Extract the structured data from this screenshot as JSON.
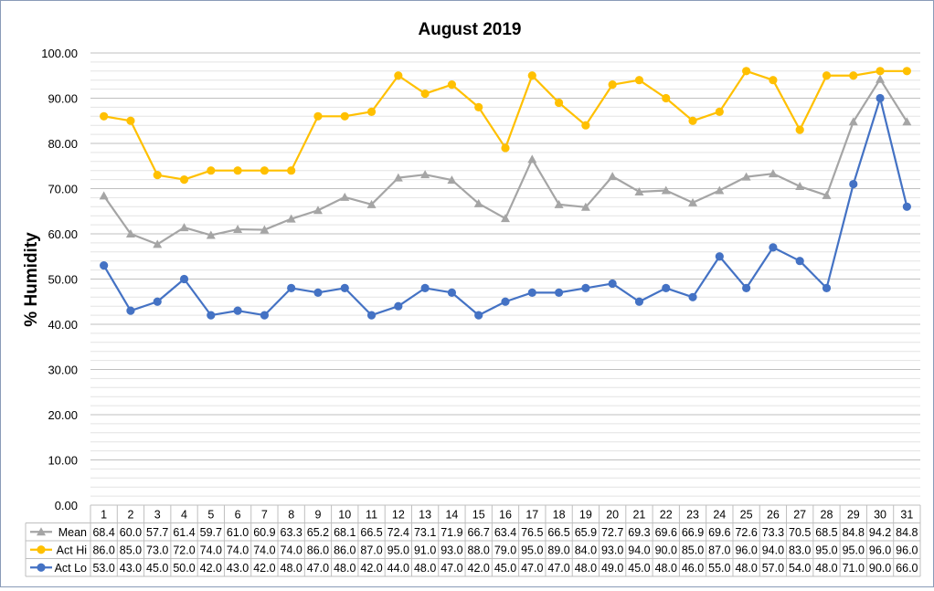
{
  "chart_data": {
    "type": "line",
    "title": "August 2019",
    "ylabel": "% Humidity",
    "xlabel": "",
    "ylim": [
      0,
      100
    ],
    "y_ticks": [
      "0.00",
      "10.00",
      "20.00",
      "30.00",
      "40.00",
      "50.00",
      "60.00",
      "70.00",
      "80.00",
      "90.00",
      "100.00"
    ],
    "y_minor_step": 2,
    "grid": true,
    "legend": "data-table-left",
    "categories": [
      "1",
      "2",
      "3",
      "4",
      "5",
      "6",
      "7",
      "8",
      "9",
      "10",
      "11",
      "12",
      "13",
      "14",
      "15",
      "16",
      "17",
      "18",
      "19",
      "20",
      "21",
      "22",
      "23",
      "24",
      "25",
      "26",
      "27",
      "28",
      "29",
      "30",
      "31"
    ],
    "series": [
      {
        "name": "Mean",
        "color": "#a5a5a5",
        "marker": "triangle",
        "values": [
          68.4,
          60.0,
          57.7,
          61.4,
          59.7,
          61.0,
          60.9,
          63.3,
          65.2,
          68.1,
          66.5,
          72.4,
          73.1,
          71.9,
          66.7,
          63.4,
          76.5,
          66.5,
          65.9,
          72.7,
          69.3,
          69.6,
          66.9,
          69.6,
          72.6,
          73.3,
          70.5,
          68.5,
          84.8,
          94.2,
          84.8
        ],
        "labels": [
          "68.4",
          "60.0",
          "57.7",
          "61.4",
          "59.7",
          "61.0",
          "60.9",
          "63.3",
          "65.2",
          "68.1",
          "66.5",
          "72.4",
          "73.1",
          "71.9",
          "66.7",
          "63.4",
          "76.5",
          "66.5",
          "65.9",
          "72.7",
          "69.3",
          "69.6",
          "66.9",
          "69.6",
          "72.6",
          "73.3",
          "70.5",
          "68.5",
          "84.8",
          "94.2",
          "84.8"
        ]
      },
      {
        "name": "Act Hi",
        "color": "#ffc000",
        "marker": "circle",
        "values": [
          86.0,
          85.0,
          73.0,
          72.0,
          74.0,
          74.0,
          74.0,
          74.0,
          86.0,
          86.0,
          87.0,
          95.0,
          91.0,
          93.0,
          88.0,
          79.0,
          95.0,
          89.0,
          84.0,
          93.0,
          94.0,
          90.0,
          85.0,
          87.0,
          96.0,
          94.0,
          83.0,
          95.0,
          95.0,
          96.0,
          96.0
        ],
        "labels": [
          "86.0",
          "85.0",
          "73.0",
          "72.0",
          "74.0",
          "74.0",
          "74.0",
          "74.0",
          "86.0",
          "86.0",
          "87.0",
          "95.0",
          "91.0",
          "93.0",
          "88.0",
          "79.0",
          "95.0",
          "89.0",
          "84.0",
          "93.0",
          "94.0",
          "90.0",
          "85.0",
          "87.0",
          "96.0",
          "94.0",
          "83.0",
          "95.0",
          "95.0",
          "96.0",
          "96.0"
        ]
      },
      {
        "name": "Act Lo",
        "color": "#4472c4",
        "marker": "circle",
        "values": [
          53.0,
          43.0,
          45.0,
          50.0,
          42.0,
          43.0,
          42.0,
          48.0,
          47.0,
          48.0,
          42.0,
          44.0,
          48.0,
          47.0,
          42.0,
          45.0,
          47.0,
          47.0,
          48.0,
          49.0,
          45.0,
          48.0,
          46.0,
          55.0,
          48.0,
          57.0,
          54.0,
          48.0,
          71.0,
          90.0,
          66.0
        ],
        "labels": [
          "53.0",
          "43.0",
          "45.0",
          "50.0",
          "42.0",
          "43.0",
          "42.0",
          "48.0",
          "47.0",
          "48.0",
          "42.0",
          "44.0",
          "48.0",
          "47.0",
          "42.0",
          "45.0",
          "47.0",
          "47.0",
          "48.0",
          "49.0",
          "45.0",
          "48.0",
          "46.0",
          "55.0",
          "48.0",
          "57.0",
          "54.0",
          "48.0",
          "71.0",
          "90.0",
          "66.0"
        ]
      }
    ]
  }
}
